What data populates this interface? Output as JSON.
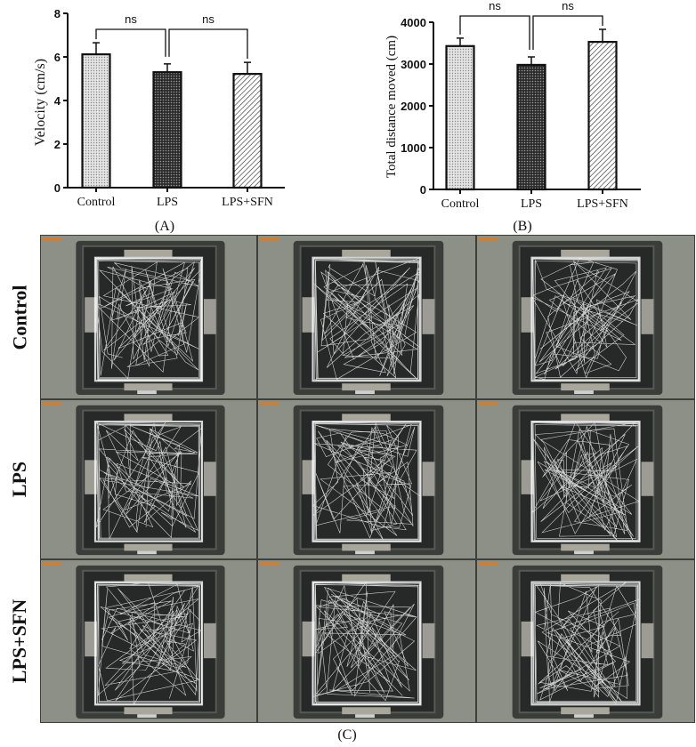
{
  "colors": {
    "bar_outline": "#111111",
    "control_fill": "#d9d9d9",
    "lps_fill": "#3a3a3a",
    "sfn_fill": "#ffffff",
    "track": "#f2f2f2",
    "arena": "#2b2e2c",
    "frame": "#6e7168"
  },
  "panels": {
    "a_label": "(A)",
    "b_label": "(B)",
    "c_label": "(C)"
  },
  "grid": {
    "row_labels": [
      "Control",
      "LPS",
      "LPS+SFN"
    ],
    "columns": 3
  },
  "chart_data": [
    {
      "type": "bar",
      "title": "",
      "panel": "(A)",
      "categories": [
        "Control",
        "LPS",
        "LPS+SFN"
      ],
      "values": [
        6.12,
        5.3,
        5.22
      ],
      "error": [
        0.53,
        0.38,
        0.53
      ],
      "xlabel": "",
      "ylabel": "Velocity (cm/s)",
      "ylim": [
        0,
        8
      ],
      "yticks": [
        0,
        2,
        4,
        6,
        8
      ],
      "annotations": [
        {
          "text": "ns",
          "between": [
            "Control",
            "LPS"
          ]
        },
        {
          "text": "ns",
          "between": [
            "LPS",
            "LPS+SFN"
          ]
        }
      ],
      "patterns": [
        "light-dots",
        "dark-crosshatch",
        "diagonal-hatch"
      ],
      "grid": false,
      "legend": "none"
    },
    {
      "type": "bar",
      "title": "",
      "panel": "(B)",
      "categories": [
        "Control",
        "LPS",
        "LPS+SFN"
      ],
      "values": [
        3430,
        2980,
        3530
      ],
      "error": [
        190,
        190,
        300
      ],
      "xlabel": "",
      "ylabel": "Total distance moved (cm)",
      "ylim": [
        0,
        4000
      ],
      "yticks": [
        0,
        1000,
        2000,
        3000,
        4000
      ],
      "annotations": [
        {
          "text": "ns",
          "between": [
            "Control",
            "LPS"
          ]
        },
        {
          "text": "ns",
          "between": [
            "LPS",
            "LPS+SFN"
          ]
        }
      ],
      "patterns": [
        "light-dots",
        "dark-crosshatch",
        "diagonal-hatch"
      ],
      "grid": false,
      "legend": "none"
    }
  ]
}
